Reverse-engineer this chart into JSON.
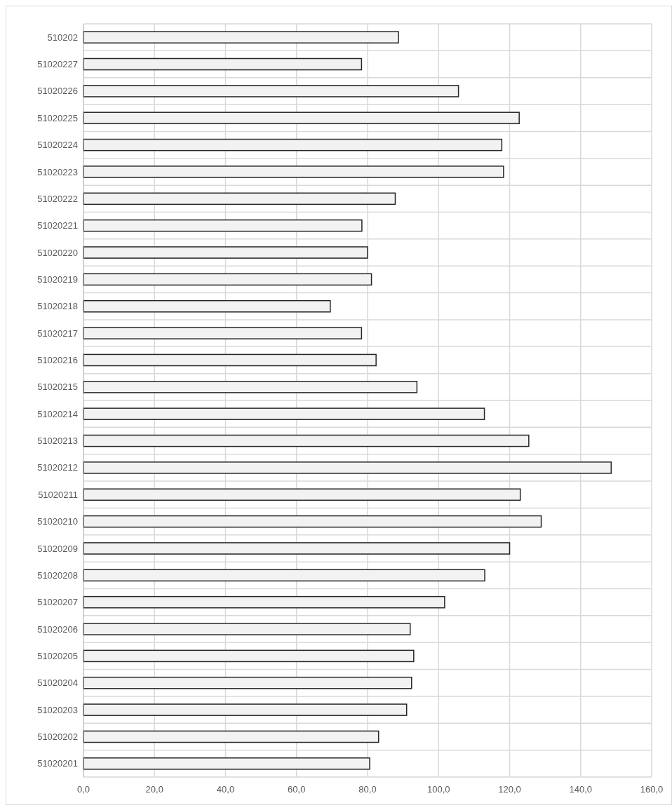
{
  "chart_data": {
    "type": "bar",
    "orientation": "horizontal",
    "categories": [
      "510202",
      "51020227",
      "51020226",
      "51020225",
      "51020224",
      "51020223",
      "51020222",
      "51020221",
      "51020220",
      "51020219",
      "51020218",
      "51020217",
      "51020216",
      "51020215",
      "51020214",
      "51020213",
      "51020212",
      "51020211",
      "51020210",
      "51020209",
      "51020208",
      "51020207",
      "51020206",
      "51020205",
      "51020204",
      "51020203",
      "51020202",
      "51020201"
    ],
    "values": [
      88.7,
      78.3,
      105.6,
      122.7,
      117.8,
      118.3,
      87.8,
      78.4,
      80.0,
      81.1,
      69.5,
      78.3,
      82.4,
      93.9,
      112.9,
      125.4,
      148.6,
      123.0,
      128.9,
      120.0,
      113.0,
      101.7,
      92.0,
      93.0,
      92.4,
      91.0,
      83.1,
      80.6
    ],
    "color": "#f2f2f2",
    "xlim": [
      0,
      160
    ],
    "xticks": [
      {
        "value": 0,
        "label": "0,0"
      },
      {
        "value": 20,
        "label": "20,0"
      },
      {
        "value": 40,
        "label": "40,0"
      },
      {
        "value": 60,
        "label": "60,0"
      },
      {
        "value": 80,
        "label": "80,0"
      },
      {
        "value": 100,
        "label": "100,0"
      },
      {
        "value": 120,
        "label": "120,0"
      },
      {
        "value": 140,
        "label": "140,0"
      },
      {
        "value": 160,
        "label": "160,0"
      }
    ],
    "grid": true
  }
}
